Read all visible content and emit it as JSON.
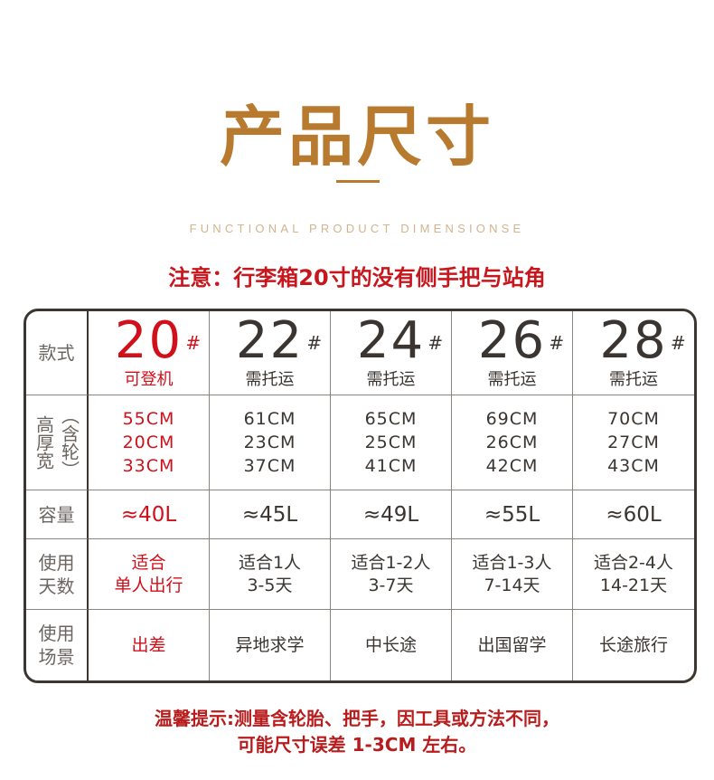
{
  "title": "产品尺寸",
  "subtitle": "FUNCTIONAL PRODUCT DIMENSIONSE",
  "notice": "注意：行李箱20寸的没有侧手把与站角",
  "row_labels": {
    "style": "款式",
    "dims_main": "高厚宽",
    "dims_note": "（含轮）",
    "capacity": "容量",
    "days": [
      "使用",
      "天数"
    ],
    "scene": [
      "使用",
      "场景"
    ]
  },
  "columns": [
    {
      "size": "20",
      "mark": "#",
      "type": "可登机",
      "dims": [
        "55CM",
        "20CM",
        "33CM"
      ],
      "capacity": "≈40L",
      "days": [
        "适合",
        "单人出行"
      ],
      "scene": "出差",
      "highlight": true
    },
    {
      "size": "22",
      "mark": "#",
      "type": "需托运",
      "dims": [
        "61CM",
        "23CM",
        "37CM"
      ],
      "capacity": "≈45L",
      "days": [
        "适合1人",
        "3-5天"
      ],
      "scene": "异地求学"
    },
    {
      "size": "24",
      "mark": "#",
      "type": "需托运",
      "dims": [
        "65CM",
        "25CM",
        "41CM"
      ],
      "capacity": "≈49L",
      "days": [
        "适合1-2人",
        "3-7天"
      ],
      "scene": "中长途"
    },
    {
      "size": "26",
      "mark": "#",
      "type": "需托运",
      "dims": [
        "69CM",
        "26CM",
        "42CM"
      ],
      "capacity": "≈55L",
      "days": [
        "适合1-3人",
        "7-14天"
      ],
      "scene": "出国留学"
    },
    {
      "size": "28",
      "mark": "#",
      "type": "需托运",
      "dims": [
        "70CM",
        "27CM",
        "43CM"
      ],
      "capacity": "≈60L",
      "days": [
        "适合2-4人",
        "14-21天"
      ],
      "scene": "长途旅行"
    }
  ],
  "footer": [
    "温馨提示:测量含轮胎、把手，因工具或方法不同，",
    "可能尺寸误差 1-3CM 左右。"
  ],
  "colors": {
    "title": "#b87a2e",
    "highlight": "#d0101a",
    "text": "#3a3530",
    "footer": "#b81c1c"
  }
}
